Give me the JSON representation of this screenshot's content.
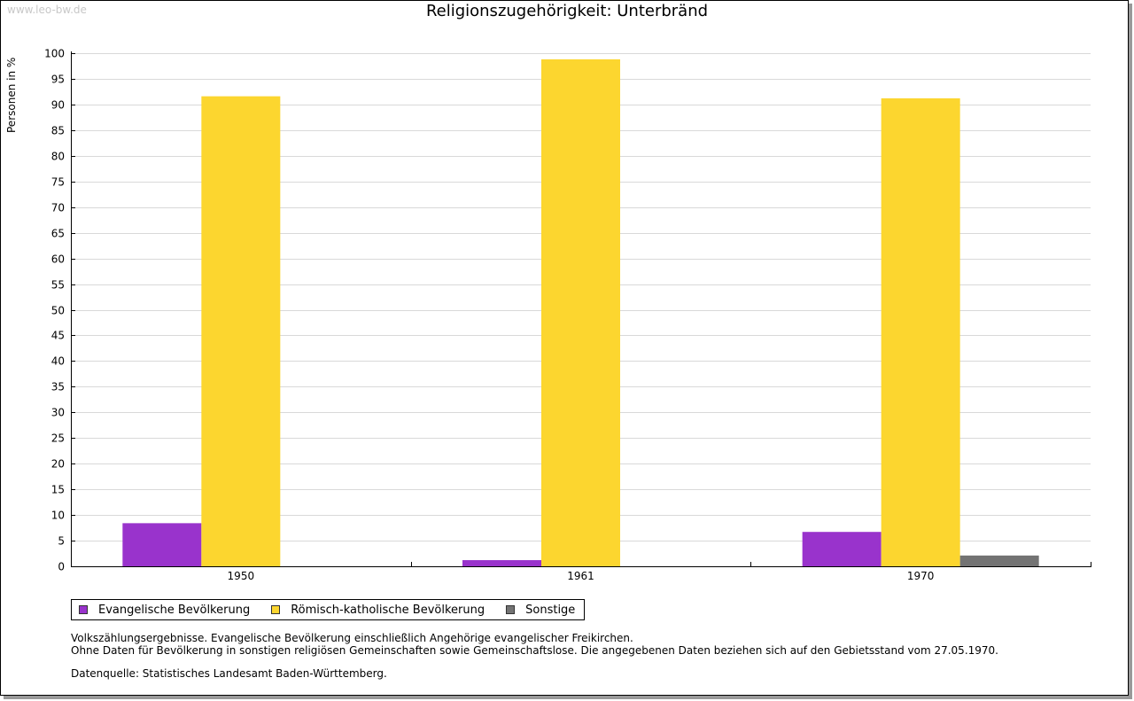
{
  "watermark": "www.leo-bw.de",
  "chart_data": {
    "type": "bar",
    "title": "Religionszugehörigkeit: Unterbränd",
    "xlabel": "",
    "ylabel": "Personen in %",
    "ylim": [
      0,
      100
    ],
    "ytick_step": 5,
    "grid": true,
    "legend_position": "bottom-left",
    "categories": [
      "1950",
      "1961",
      "1970"
    ],
    "series": [
      {
        "name": "Evangelische Bevölkerung",
        "color": "#9933cc",
        "values": [
          8.4,
          1.2,
          6.7
        ]
      },
      {
        "name": "Römisch-katholische Bevölkerung",
        "color": "#fcd62f",
        "values": [
          91.6,
          98.8,
          91.2
        ]
      },
      {
        "name": "Sonstige",
        "color": "#737373",
        "values": [
          0,
          0,
          2.1
        ]
      }
    ]
  },
  "notes": {
    "line1": "Volkszählungsergebnisse. Evangelische Bevölkerung einschließlich Angehörige evangelischer Freikirchen.",
    "line2": "Ohne Daten für Bevölkerung in sonstigen religiösen Gemeinschaften sowie Gemeinschaftslose. Die angegebenen Daten beziehen sich auf den Gebietsstand vom 27.05.1970."
  },
  "source": "Datenquelle: Statistisches Landesamt Baden-Württemberg."
}
